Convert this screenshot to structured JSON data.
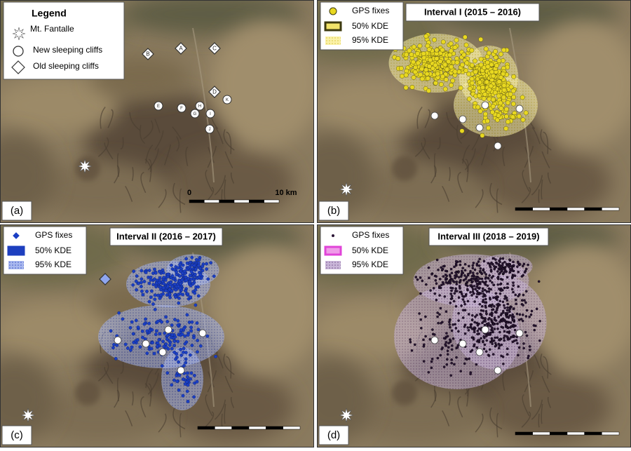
{
  "panels": [
    {
      "label": "(a)",
      "legend": {
        "title": "Legend",
        "items": [
          "Mt. Fantalle",
          "New sleeping cliffs",
          "Old sleeping cliffs"
        ]
      },
      "scale": {
        "start": "0",
        "end": "10 km"
      },
      "cliffs": [
        "A",
        "B",
        "C",
        "D",
        "E",
        "F",
        "G",
        "H",
        "I",
        "J",
        "K"
      ]
    },
    {
      "label": "(b)",
      "title": "Interval I (2015 – 2016)",
      "legend": {
        "items": [
          "GPS fixes",
          "50% KDE",
          "95% KDE"
        ]
      }
    },
    {
      "label": "(c)",
      "title": "Interval II (2016 – 2017)",
      "legend": {
        "items": [
          "GPS fixes",
          "50% KDE",
          "95% KDE"
        ]
      }
    },
    {
      "label": "(d)",
      "title": "Interval III (2018 – 2019)",
      "legend": {
        "items": [
          "GPS fixes",
          "50% KDE",
          "95% KDE"
        ]
      }
    }
  ]
}
